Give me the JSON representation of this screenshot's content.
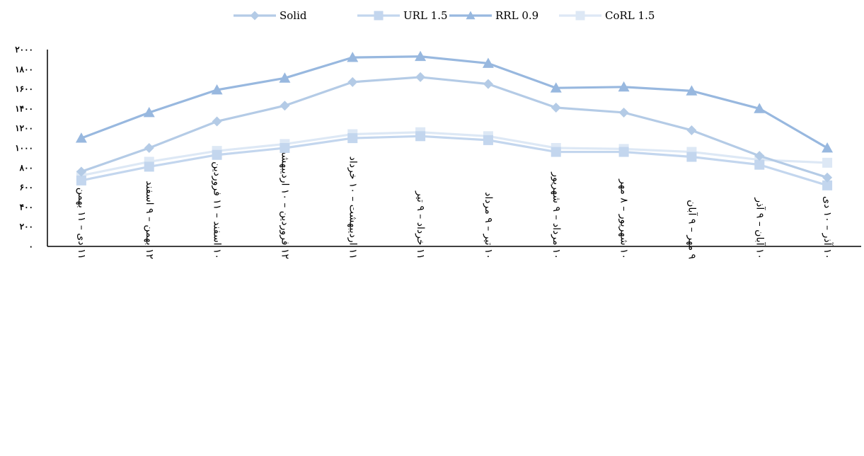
{
  "chart_data": {
    "type": "line",
    "categories": [
      "۱۱ دی – ۱۱ بهمن",
      "۱۲ بهمن – ۹ اسفند",
      "۱۰ اسفند – ۱۱ فروردین",
      "۱۲ فروردین – ۱۰ اردیبهشت",
      "۱۱ اردیبهشت – ۱۰ خرداد",
      "۱۱ خرداد – ۹ تیر",
      "۱۰ تیر – ۹ مرداد",
      "۱۰ مرداد – ۹ شهریور",
      "۱۰ شهریور – ۸ مهر",
      "۹ مهر – ۹ آبان",
      "۱۰ آبان – ۹ آذر",
      "۱۰ آذر – ۱۰ دی"
    ],
    "series": [
      {
        "name": "Solid",
        "marker": "diamond",
        "color": "#b4cbe6",
        "values": [
          760,
          1000,
          1270,
          1430,
          1670,
          1720,
          1650,
          1410,
          1360,
          1180,
          920,
          700
        ]
      },
      {
        "name": "URL 1.5",
        "marker": "square",
        "color": "#c3d6ee",
        "values": [
          670,
          810,
          930,
          1000,
          1100,
          1120,
          1080,
          960,
          960,
          910,
          830,
          620
        ]
      },
      {
        "name": "RRL 0.9",
        "marker": "triangle",
        "color": "#98b8df",
        "values": [
          1100,
          1360,
          1590,
          1710,
          1920,
          1930,
          1860,
          1610,
          1620,
          1580,
          1400,
          1000
        ]
      },
      {
        "name": "CoRL 1.5",
        "marker": "square",
        "color": "#dde8f5",
        "values": [
          720,
          860,
          970,
          1040,
          1140,
          1160,
          1120,
          1000,
          990,
          960,
          880,
          850
        ]
      }
    ],
    "y_ticks": [
      "۰",
      "۲۰۰",
      "۴۰۰",
      "۶۰۰",
      "۸۰۰",
      "۱۰۰۰",
      "۱۲۰۰",
      "۱۴۰۰",
      "۱۶۰۰",
      "۱۸۰۰",
      "۲۰۰۰"
    ],
    "ylim": [
      0,
      2000
    ],
    "grid": false,
    "legend_position": "top-center"
  }
}
